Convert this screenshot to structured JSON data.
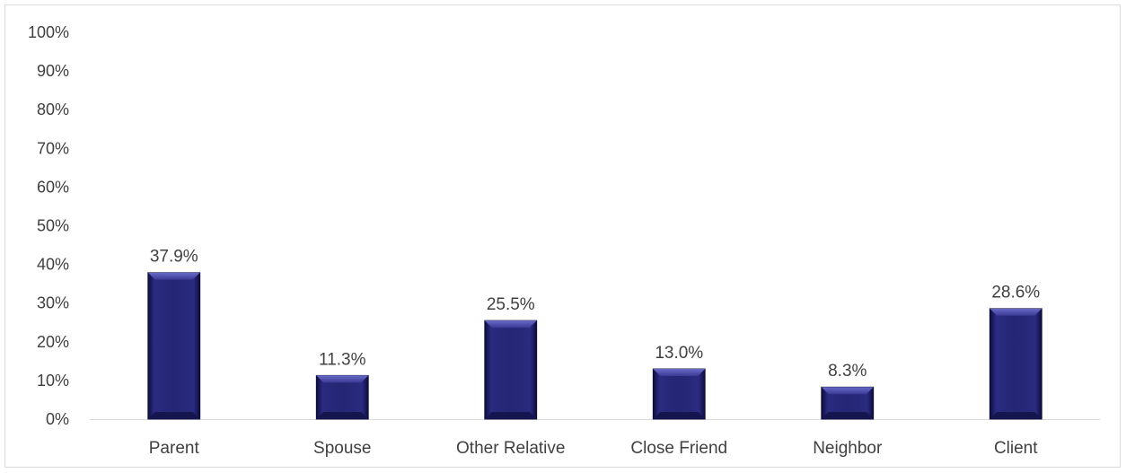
{
  "chart_data": {
    "type": "bar",
    "title": "",
    "xlabel": "",
    "ylabel": "",
    "categories": [
      "Parent",
      "Spouse",
      "Other Relative",
      "Close Friend",
      "Neighbor",
      "Client"
    ],
    "values": [
      37.9,
      11.3,
      25.5,
      13.0,
      8.3,
      28.6
    ],
    "data_labels": [
      "37.9%",
      "11.3%",
      "25.5%",
      "13.0%",
      "8.3%",
      "28.6%"
    ],
    "ylim": [
      0,
      100
    ],
    "yticks": [
      0,
      10,
      20,
      30,
      40,
      50,
      60,
      70,
      80,
      90,
      100
    ],
    "ytick_labels": [
      "0%",
      "10%",
      "20%",
      "30%",
      "40%",
      "50%",
      "60%",
      "70%",
      "80%",
      "90%",
      "100%"
    ],
    "grid": false,
    "legend": "none",
    "bar_color": "#1f1f6b",
    "bar_highlight_color": "#4a4aa8",
    "axis_color": "#d9d9d9",
    "text_color": "#404040"
  }
}
